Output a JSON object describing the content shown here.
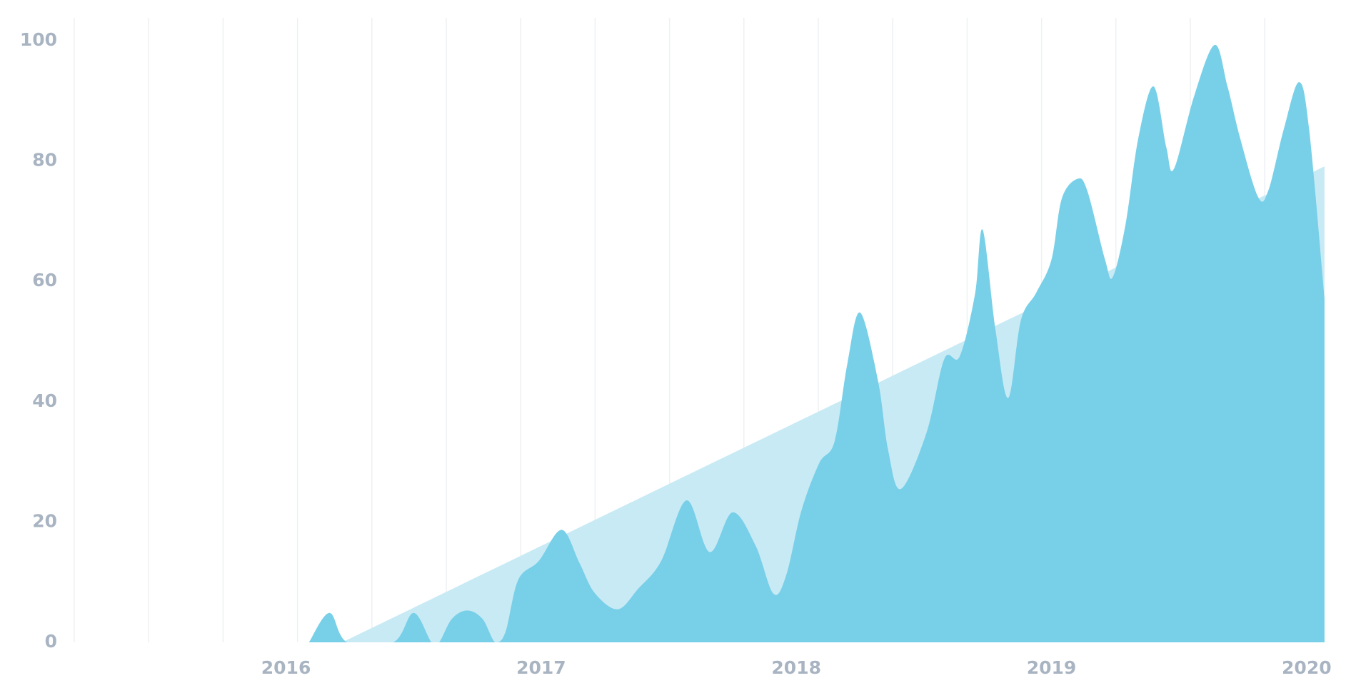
{
  "chart_data": {
    "type": "area",
    "xlim": [
      2015.17,
      2020.09
    ],
    "xticks": [
      2016,
      2017,
      2018,
      2019,
      2020
    ],
    "ylim": [
      0,
      100
    ],
    "yticks": [
      0,
      20,
      40,
      60,
      80,
      100
    ],
    "series": [
      {
        "color": "#c8eaf4",
        "x": [
          2016.22,
          2020.07
        ],
        "values": [
          0,
          79.1
        ]
      },
      {
        "color": "#78cfe8",
        "x": [
          2016.09,
          2016.17,
          2016.24,
          2016.42,
          2016.5,
          2016.57,
          2016.6,
          2016.65,
          2016.71,
          2016.77,
          2016.82,
          2016.86,
          2016.91,
          2016.99,
          2017.08,
          2017.15,
          2017.21,
          2017.3,
          2017.38,
          2017.47,
          2017.57,
          2017.66,
          2017.75,
          2017.84,
          2017.91,
          2017.96,
          2018.02,
          2018.09,
          2018.15,
          2018.2,
          2018.25,
          2018.32,
          2018.36,
          2018.41,
          2018.51,
          2018.58,
          2018.64,
          2018.7,
          2018.73,
          2018.78,
          2018.83,
          2018.88,
          2018.94,
          2019.0,
          2019.04,
          2019.1,
          2019.14,
          2019.21,
          2019.24,
          2019.29,
          2019.34,
          2019.4,
          2019.45,
          2019.48,
          2019.56,
          2019.64,
          2019.69,
          2019.74,
          2019.81,
          2019.85,
          2019.91,
          2019.97,
          2020.01,
          2020.07
        ],
        "values": [
          0,
          4.9,
          0,
          0,
          4.9,
          0,
          0,
          3.9,
          5.3,
          3.9,
          0,
          1.7,
          10.4,
          13.5,
          18.7,
          13.2,
          8.2,
          5.5,
          8.9,
          13.5,
          23.6,
          15.0,
          21.6,
          16.1,
          8.1,
          11.1,
          21.9,
          29.8,
          33.4,
          46.3,
          54.8,
          43.5,
          31.9,
          25.5,
          34.8,
          47.1,
          47.5,
          57.8,
          68.6,
          52.1,
          40.6,
          53.5,
          58.1,
          63.6,
          73.7,
          77.0,
          75.1,
          63.6,
          60.7,
          69.4,
          83.7,
          92.4,
          82.3,
          78.7,
          90.9,
          99.3,
          92.4,
          83.7,
          74.0,
          75.1,
          85.2,
          93.1,
          85.2,
          57.1
        ]
      }
    ]
  }
}
